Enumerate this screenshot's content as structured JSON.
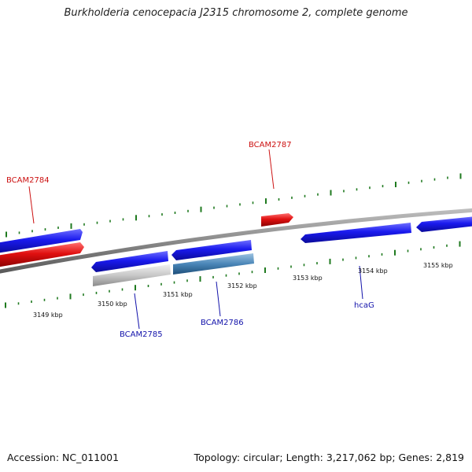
{
  "title": "Burkholderia cenocepacia J2315 chromosome 2, complete genome",
  "footer": {
    "accession": "Accession: NC_011001",
    "summary": "Topology: circular; Length: 3,217,062 bp; Genes: 2,819"
  },
  "colors": {
    "background": "#ffffff",
    "backbone": "#8a8a8a",
    "tick": "#1f7a1f",
    "gene_blue": "#1a1aee",
    "gene_red": "#e01010",
    "gene_gray": "#c8c8c8",
    "gene_steel": "#4a86b8",
    "label_red": "#cc1111",
    "label_blue": "#1111aa",
    "kbp_text": "#111111"
  },
  "kbp_labels": [
    "3149 kbp",
    "3150 kbp",
    "3151 kbp",
    "3152 kbp",
    "3153 kbp",
    "3154 kbp",
    "3155 kbp"
  ],
  "gene_labels": [
    {
      "id": "BCAM2784",
      "text": "BCAM2784",
      "color": "red"
    },
    {
      "id": "BCAM2787",
      "text": "BCAM2787",
      "color": "red"
    },
    {
      "id": "BCAM2785",
      "text": "BCAM2785",
      "color": "blue"
    },
    {
      "id": "BCAM2786",
      "text": "BCAM2786",
      "color": "blue"
    },
    {
      "id": "hcaG",
      "text": "hcaG",
      "color": "blue"
    }
  ]
}
